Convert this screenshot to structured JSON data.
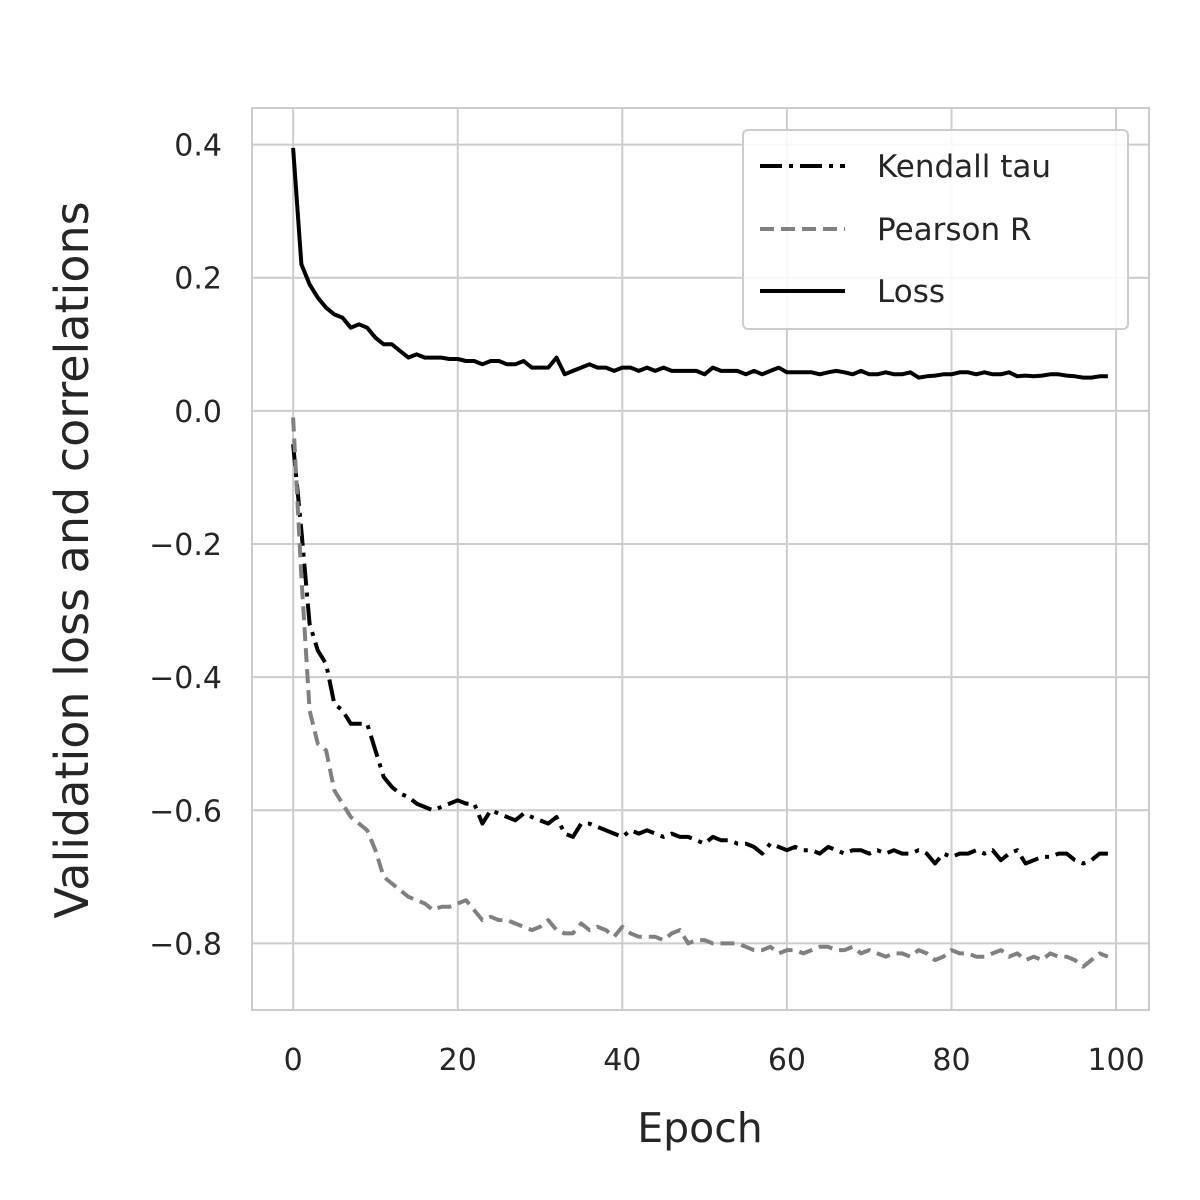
{
  "chart_data": {
    "type": "line",
    "xlabel": "Epoch",
    "ylabel": "Validation loss and correlations",
    "xlim": [
      -5,
      104
    ],
    "ylim": [
      -0.9,
      0.455
    ],
    "xticks": [
      0,
      20,
      40,
      60,
      80,
      100
    ],
    "xtick_labels": [
      "0",
      "20",
      "40",
      "60",
      "80",
      "100"
    ],
    "yticks": [
      0.4,
      0.2,
      0.0,
      -0.2,
      -0.4,
      -0.6,
      -0.8
    ],
    "ytick_labels": [
      "0.4",
      "0.2",
      "0.0",
      "−0.2",
      "−0.4",
      "−0.6",
      "−0.8"
    ],
    "grid": true,
    "legend_position": "top-right",
    "series": [
      {
        "name": "Kendall tau",
        "style": "dashdot",
        "color": "#000000",
        "x": [
          0,
          1,
          2,
          3,
          4,
          5,
          6,
          7,
          8,
          9,
          10,
          11,
          12,
          13,
          14,
          15,
          16,
          17,
          18,
          19,
          20,
          21,
          22,
          23,
          24,
          25,
          26,
          27,
          28,
          29,
          30,
          31,
          32,
          33,
          34,
          35,
          36,
          37,
          38,
          39,
          40,
          41,
          42,
          43,
          44,
          45,
          46,
          47,
          48,
          49,
          50,
          51,
          52,
          53,
          54,
          55,
          56,
          57,
          58,
          59,
          60,
          61,
          62,
          63,
          64,
          65,
          66,
          67,
          68,
          69,
          70,
          71,
          72,
          73,
          74,
          75,
          76,
          77,
          78,
          79,
          80,
          81,
          82,
          83,
          84,
          85,
          86,
          87,
          88,
          89,
          90,
          91,
          92,
          93,
          94,
          95,
          96,
          97,
          98,
          99
        ],
        "values": [
          -0.05,
          -0.18,
          -0.32,
          -0.36,
          -0.38,
          -0.44,
          -0.45,
          -0.47,
          -0.47,
          -0.47,
          -0.51,
          -0.55,
          -0.565,
          -0.575,
          -0.58,
          -0.59,
          -0.595,
          -0.6,
          -0.595,
          -0.59,
          -0.585,
          -0.59,
          -0.59,
          -0.62,
          -0.6,
          -0.605,
          -0.61,
          -0.615,
          -0.605,
          -0.61,
          -0.615,
          -0.62,
          -0.61,
          -0.635,
          -0.64,
          -0.62,
          -0.62,
          -0.625,
          -0.63,
          -0.635,
          -0.64,
          -0.63,
          -0.635,
          -0.63,
          -0.635,
          -0.64,
          -0.635,
          -0.64,
          -0.64,
          -0.645,
          -0.65,
          -0.64,
          -0.645,
          -0.645,
          -0.65,
          -0.65,
          -0.655,
          -0.665,
          -0.65,
          -0.655,
          -0.66,
          -0.655,
          -0.66,
          -0.66,
          -0.665,
          -0.655,
          -0.66,
          -0.665,
          -0.66,
          -0.66,
          -0.665,
          -0.66,
          -0.665,
          -0.66,
          -0.665,
          -0.665,
          -0.66,
          -0.665,
          -0.68,
          -0.665,
          -0.67,
          -0.665,
          -0.665,
          -0.66,
          -0.665,
          -0.66,
          -0.675,
          -0.665,
          -0.66,
          -0.68,
          -0.675,
          -0.67,
          -0.67,
          -0.665,
          -0.665,
          -0.675,
          -0.68,
          -0.675,
          -0.665,
          -0.665
        ]
      },
      {
        "name": "Pearson R",
        "style": "dashed",
        "color": "#808080",
        "x": [
          0,
          1,
          2,
          3,
          4,
          5,
          6,
          7,
          8,
          9,
          10,
          11,
          12,
          13,
          14,
          15,
          16,
          17,
          18,
          19,
          20,
          21,
          22,
          23,
          24,
          25,
          26,
          27,
          28,
          29,
          30,
          31,
          32,
          33,
          34,
          35,
          36,
          37,
          38,
          39,
          40,
          41,
          42,
          43,
          44,
          45,
          46,
          47,
          48,
          49,
          50,
          51,
          52,
          53,
          54,
          55,
          56,
          57,
          58,
          59,
          60,
          61,
          62,
          63,
          64,
          65,
          66,
          67,
          68,
          69,
          70,
          71,
          72,
          73,
          74,
          75,
          76,
          77,
          78,
          79,
          80,
          81,
          82,
          83,
          84,
          85,
          86,
          87,
          88,
          89,
          90,
          91,
          92,
          93,
          94,
          95,
          96,
          97,
          98,
          99
        ],
        "values": [
          -0.01,
          -0.25,
          -0.45,
          -0.5,
          -0.51,
          -0.57,
          -0.59,
          -0.61,
          -0.62,
          -0.63,
          -0.66,
          -0.7,
          -0.71,
          -0.72,
          -0.73,
          -0.735,
          -0.74,
          -0.75,
          -0.745,
          -0.745,
          -0.74,
          -0.735,
          -0.75,
          -0.765,
          -0.76,
          -0.765,
          -0.765,
          -0.77,
          -0.775,
          -0.78,
          -0.775,
          -0.765,
          -0.78,
          -0.785,
          -0.785,
          -0.77,
          -0.78,
          -0.775,
          -0.78,
          -0.79,
          -0.775,
          -0.785,
          -0.79,
          -0.79,
          -0.79,
          -0.795,
          -0.785,
          -0.78,
          -0.8,
          -0.795,
          -0.795,
          -0.8,
          -0.8,
          -0.8,
          -0.8,
          -0.805,
          -0.81,
          -0.81,
          -0.805,
          -0.815,
          -0.81,
          -0.81,
          -0.815,
          -0.81,
          -0.805,
          -0.805,
          -0.81,
          -0.81,
          -0.805,
          -0.815,
          -0.81,
          -0.815,
          -0.82,
          -0.815,
          -0.815,
          -0.82,
          -0.81,
          -0.815,
          -0.825,
          -0.82,
          -0.81,
          -0.815,
          -0.815,
          -0.82,
          -0.82,
          -0.815,
          -0.81,
          -0.82,
          -0.815,
          -0.825,
          -0.82,
          -0.825,
          -0.815,
          -0.82,
          -0.82,
          -0.825,
          -0.835,
          -0.825,
          -0.815,
          -0.82
        ]
      },
      {
        "name": "Loss",
        "style": "solid",
        "color": "#000000",
        "x": [
          0,
          1,
          2,
          3,
          4,
          5,
          6,
          7,
          8,
          9,
          10,
          11,
          12,
          13,
          14,
          15,
          16,
          17,
          18,
          19,
          20,
          21,
          22,
          23,
          24,
          25,
          26,
          27,
          28,
          29,
          30,
          31,
          32,
          33,
          34,
          35,
          36,
          37,
          38,
          39,
          40,
          41,
          42,
          43,
          44,
          45,
          46,
          47,
          48,
          49,
          50,
          51,
          52,
          53,
          54,
          55,
          56,
          57,
          58,
          59,
          60,
          61,
          62,
          63,
          64,
          65,
          66,
          67,
          68,
          69,
          70,
          71,
          72,
          73,
          74,
          75,
          76,
          77,
          78,
          79,
          80,
          81,
          82,
          83,
          84,
          85,
          86,
          87,
          88,
          89,
          90,
          91,
          92,
          93,
          94,
          95,
          96,
          97,
          98,
          99
        ],
        "values": [
          0.395,
          0.22,
          0.19,
          0.17,
          0.155,
          0.145,
          0.14,
          0.125,
          0.13,
          0.125,
          0.11,
          0.1,
          0.1,
          0.09,
          0.08,
          0.085,
          0.08,
          0.08,
          0.08,
          0.078,
          0.078,
          0.075,
          0.075,
          0.07,
          0.075,
          0.075,
          0.07,
          0.07,
          0.075,
          0.065,
          0.065,
          0.065,
          0.08,
          0.055,
          0.06,
          0.065,
          0.07,
          0.065,
          0.065,
          0.06,
          0.065,
          0.065,
          0.06,
          0.065,
          0.06,
          0.065,
          0.06,
          0.06,
          0.06,
          0.06,
          0.055,
          0.065,
          0.06,
          0.06,
          0.06,
          0.055,
          0.06,
          0.055,
          0.06,
          0.065,
          0.058,
          0.058,
          0.058,
          0.058,
          0.055,
          0.058,
          0.06,
          0.058,
          0.055,
          0.06,
          0.055,
          0.055,
          0.058,
          0.055,
          0.055,
          0.058,
          0.05,
          0.052,
          0.053,
          0.055,
          0.055,
          0.058,
          0.058,
          0.055,
          0.058,
          0.055,
          0.055,
          0.058,
          0.052,
          0.053,
          0.052,
          0.053,
          0.055,
          0.055,
          0.053,
          0.052,
          0.05,
          0.05,
          0.052,
          0.052
        ]
      }
    ]
  }
}
